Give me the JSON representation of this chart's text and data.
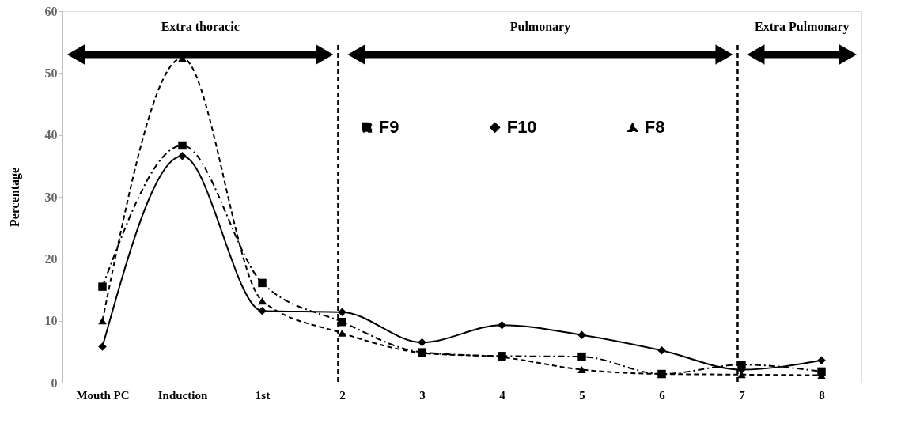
{
  "chart_data": {
    "type": "line",
    "ylabel": "Percentage",
    "categories": [
      "Mouth PC",
      "Induction",
      "1st",
      "2",
      "3",
      "4",
      "5",
      "6",
      "7",
      "8"
    ],
    "series": [
      {
        "name": "F9",
        "color": "#000000",
        "marker": "square",
        "line_style": "dashdot",
        "values": [
          15.5,
          38.3,
          16.1,
          9.8,
          4.9,
          4.3,
          4.2,
          1.4,
          2.9,
          1.8
        ]
      },
      {
        "name": "F10",
        "color": "#000000",
        "marker": "diamond",
        "line_style": "solid",
        "values": [
          5.8,
          36.6,
          11.6,
          11.4,
          6.5,
          9.3,
          7.7,
          5.2,
          2.1,
          3.6
        ]
      },
      {
        "name": "F8",
        "color": "#000000",
        "marker": "triangle",
        "line_style": "dashed",
        "values": [
          10.0,
          52.4,
          13.2,
          8.0,
          4.8,
          4.1,
          2.1,
          1.4,
          1.3,
          1.2
        ]
      }
    ],
    "ylim": [
      0,
      60
    ],
    "yticks": [
      0,
      10,
      20,
      30,
      40,
      50,
      60
    ],
    "grid": false,
    "legend": "top",
    "ref_lines": [
      {
        "axis": "x",
        "value": "2",
        "color": "#000000",
        "line_style": "dashed"
      },
      {
        "axis": "x",
        "value": "7",
        "color": "#000000",
        "line_style": "dashed"
      }
    ],
    "annotations": [
      "Extra thoracic",
      "Pulmonary",
      "Extra Pulmonary"
    ]
  }
}
